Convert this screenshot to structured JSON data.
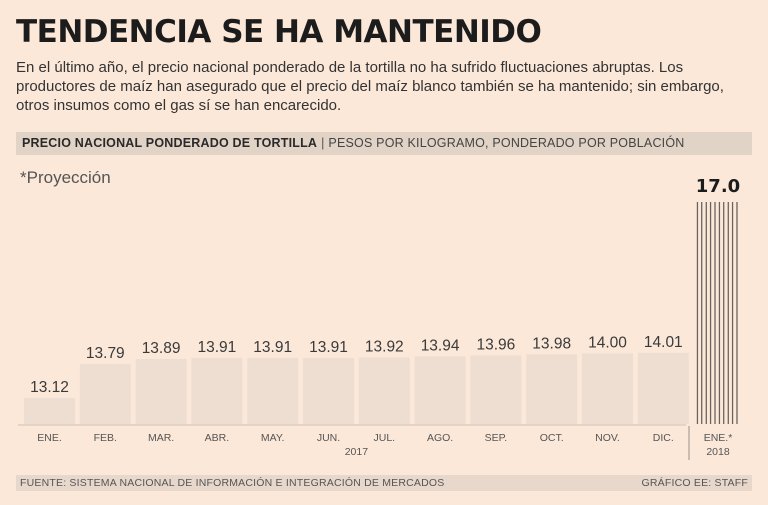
{
  "headline": "TENDENCIA SE HA MANTENIDO",
  "intro": "En el último año, el precio nacional ponderado de la tortilla no ha sufrido fluctuaciones abruptas. Los productores de maíz han asegurado que el precio del maíz blanco también se ha mantenido; sin embargo, otros insumos como el gas sí se han encarecido.",
  "subtitle": {
    "main": "PRECIO NACIONAL PONDERADO DE TORTILLA",
    "separator": "|",
    "units": "PESOS POR KILOGRAMO, PONDERADO POR POBLACIÓN"
  },
  "projection_note": "*Proyección",
  "footer": {
    "source": "FUENTE: SISTEMA NACIONAL DE INFORMACIÓN E INTEGRACIÓN DE MERCADOS",
    "credit": "GRÁFICO EE: STAFF"
  },
  "chart_data": {
    "type": "bar",
    "title": "PRECIO NACIONAL PONDERADO DE TORTILLA",
    "ylabel": "PESOS POR KILOGRAMO, PONDERADO POR POBLACIÓN",
    "xlabel": "",
    "categories": [
      "ENE.",
      "FEB.",
      "MAR.",
      "ABR.",
      "MAY.",
      "JUN.",
      "JUL.",
      "AGO.",
      "SEP.",
      "OCT.",
      "NOV.",
      "DIC.",
      "ENE.*"
    ],
    "values": [
      13.12,
      13.79,
      13.89,
      13.91,
      13.91,
      13.91,
      13.92,
      13.94,
      13.96,
      13.98,
      14.0,
      14.01,
      17.0
    ],
    "value_labels": [
      "13.12",
      "13.79",
      "13.89",
      "13.91",
      "13.91",
      "13.91",
      "13.92",
      "13.94",
      "13.96",
      "13.98",
      "14.00",
      "14.01",
      "17.0"
    ],
    "projected": [
      false,
      false,
      false,
      false,
      false,
      false,
      false,
      false,
      false,
      false,
      false,
      false,
      true
    ],
    "year_labels": [
      {
        "label": "2017",
        "spans": [
          "ENE.",
          "DIC."
        ]
      },
      {
        "label": "2018",
        "spans": [
          "ENE.*",
          "ENE.*"
        ]
      }
    ],
    "ylim": [
      12.6,
      17.0
    ],
    "grid": false,
    "bar_color": "#eeded2",
    "background_color": "#fbe8d9"
  }
}
